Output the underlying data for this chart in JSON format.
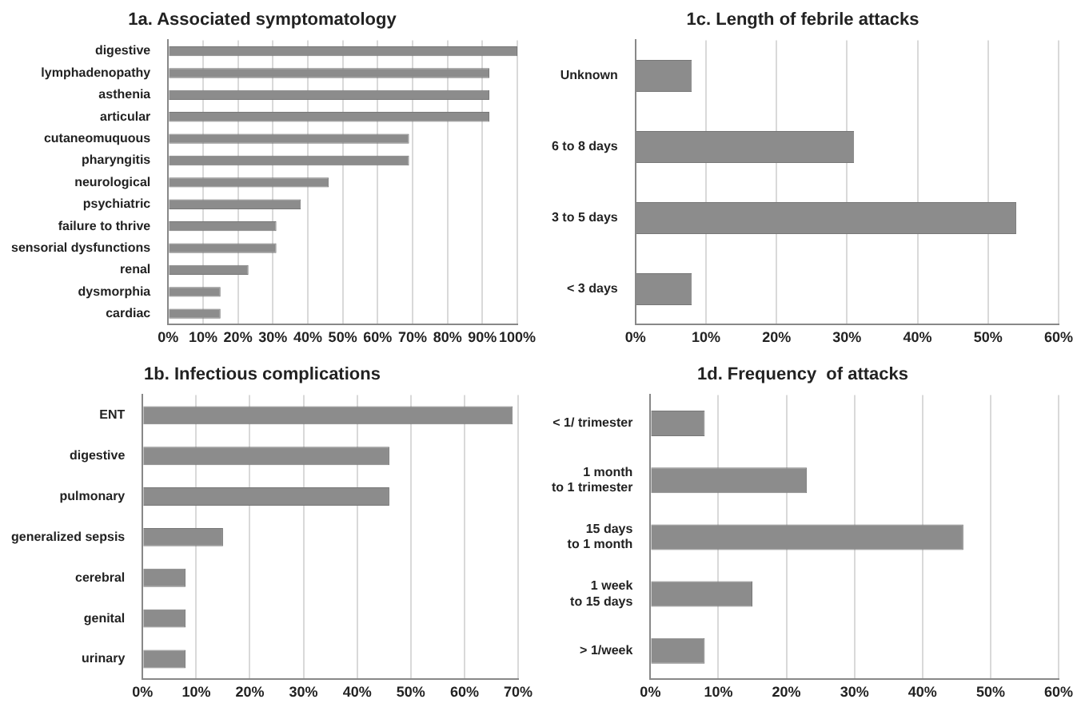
{
  "chart_data": [
    {
      "type": "bar",
      "orientation": "horizontal",
      "title": "1a. Associated symptomatology",
      "categories": [
        "digestive",
        "lymphadenopathy",
        "asthenia",
        "articular",
        "cutaneomuquous",
        "pharyngitis",
        "neurological",
        "psychiatric",
        "failure to thrive",
        "sensorial dysfunctions",
        "renal",
        "dysmorphia",
        "cardiac"
      ],
      "values": [
        100,
        92,
        92,
        92,
        69,
        69,
        46,
        38,
        31,
        31,
        23,
        15,
        15
      ],
      "color": "#8c8c8c",
      "xlim": [
        0,
        100
      ],
      "xticks": [
        {
          "value": 0,
          "label": "0%"
        },
        {
          "value": 10,
          "label": "10%"
        },
        {
          "value": 20,
          "label": "20%"
        },
        {
          "value": 30,
          "label": "30%"
        },
        {
          "value": 40,
          "label": "40%"
        },
        {
          "value": 50,
          "label": "50%"
        },
        {
          "value": 60,
          "label": "60%"
        },
        {
          "value": 70,
          "label": "70%"
        },
        {
          "value": 80,
          "label": "80%"
        },
        {
          "value": 90,
          "label": "90%"
        },
        {
          "value": 100,
          "label": "100%"
        }
      ],
      "grid": "x"
    },
    {
      "type": "bar",
      "orientation": "horizontal",
      "title": "1c. Length of febrile attacks",
      "categories": [
        "Unknown",
        "6 to 8 days",
        "3 to 5 days",
        "< 3 days"
      ],
      "values": [
        8,
        31,
        54,
        8
      ],
      "color": "#8c8c8c",
      "xlim": [
        0,
        60
      ],
      "xticks": [
        {
          "value": 0,
          "label": "0%"
        },
        {
          "value": 10,
          "label": "10%"
        },
        {
          "value": 20,
          "label": "20%"
        },
        {
          "value": 30,
          "label": "30%"
        },
        {
          "value": 40,
          "label": "40%"
        },
        {
          "value": 50,
          "label": "50%"
        },
        {
          "value": 60,
          "label": "60%"
        }
      ],
      "grid": "x"
    },
    {
      "type": "bar",
      "orientation": "horizontal",
      "title": "1b. Infectious complications",
      "categories": [
        "ENT",
        "digestive",
        "pulmonary",
        "generalized sepsis",
        "cerebral",
        "genital",
        "urinary"
      ],
      "values": [
        69,
        46,
        46,
        15,
        8,
        8,
        8
      ],
      "color": "#8c8c8c",
      "xlim": [
        0,
        70
      ],
      "xticks": [
        {
          "value": 0,
          "label": "0%"
        },
        {
          "value": 10,
          "label": "10%"
        },
        {
          "value": 20,
          "label": "20%"
        },
        {
          "value": 30,
          "label": "30%"
        },
        {
          "value": 40,
          "label": "40%"
        },
        {
          "value": 50,
          "label": "50%"
        },
        {
          "value": 60,
          "label": "60%"
        },
        {
          "value": 70,
          "label": "70%"
        }
      ],
      "grid": "x"
    },
    {
      "type": "bar",
      "orientation": "horizontal",
      "title": "1d. Frequency  of attacks",
      "categories": [
        "< 1/ trimester",
        "1 month\nto 1 trimester",
        "15 days\nto 1 month",
        "1 week\nto 15 days",
        "> 1/week"
      ],
      "values": [
        8,
        23,
        46,
        15,
        8
      ],
      "color": "#8c8c8c",
      "xlim": [
        0,
        60
      ],
      "xticks": [
        {
          "value": 0,
          "label": "0%"
        },
        {
          "value": 10,
          "label": "10%"
        },
        {
          "value": 20,
          "label": "20%"
        },
        {
          "value": 30,
          "label": "30%"
        },
        {
          "value": 40,
          "label": "40%"
        },
        {
          "value": 50,
          "label": "50%"
        },
        {
          "value": 60,
          "label": "60%"
        }
      ],
      "grid": "x"
    }
  ]
}
